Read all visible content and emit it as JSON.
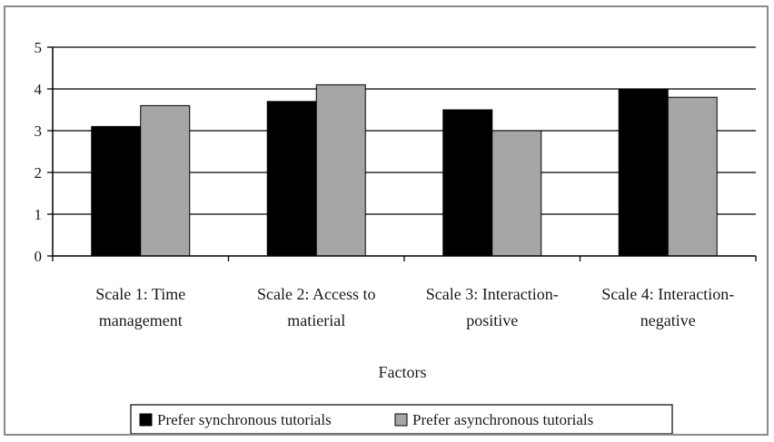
{
  "chart_data": {
    "type": "bar",
    "categories": [
      [
        "Scale 1: Time",
        "management"
      ],
      [
        "Scale 2: Access to",
        "matierial"
      ],
      [
        "Scale 3: Interaction-",
        "positive"
      ],
      [
        "Scale 4: Interaction-",
        "negative"
      ]
    ],
    "series": [
      {
        "name": "Prefer synchronous tutorials",
        "color": "#000000",
        "values": [
          3.1,
          3.7,
          3.5,
          4.0
        ]
      },
      {
        "name": "Prefer asynchronous tutorials",
        "color": "#a6a6a6",
        "values": [
          3.6,
          4.1,
          3.0,
          3.8
        ]
      }
    ],
    "xlabel": "Factors",
    "ylabel": "",
    "ylim": [
      0,
      5
    ],
    "yticks": [
      "0",
      "1",
      "2",
      "3",
      "4",
      "5"
    ],
    "grid": true,
    "legend_position": "bottom"
  }
}
